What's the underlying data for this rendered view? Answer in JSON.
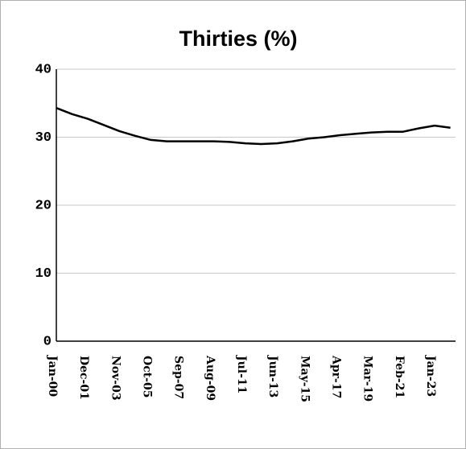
{
  "chart_data": {
    "type": "line",
    "title": "Thirties (%)",
    "categories": [
      "Jan-00",
      null,
      "Dec-01",
      null,
      "Nov-03",
      null,
      "Oct-05",
      null,
      "Sep-07",
      null,
      "Aug-09",
      null,
      "Jul-11",
      null,
      "Jun-13",
      null,
      "May-15",
      null,
      "Apr-17",
      null,
      "Mar-19",
      null,
      "Feb-21",
      null,
      "Jan-23",
      null
    ],
    "series": [
      {
        "name": "Thirties",
        "color": "#000000",
        "values": [
          34.3,
          33.4,
          32.7,
          31.8,
          30.9,
          30.2,
          29.6,
          29.4,
          29.4,
          29.4,
          29.4,
          29.3,
          29.1,
          29.0,
          29.1,
          29.4,
          29.8,
          30.0,
          30.3,
          30.5,
          30.7,
          30.8,
          30.8,
          31.3,
          31.7,
          31.4
        ]
      }
    ],
    "ylim": [
      0,
      40
    ],
    "yticks": [
      0,
      10,
      20,
      30,
      40
    ],
    "grid": true
  }
}
